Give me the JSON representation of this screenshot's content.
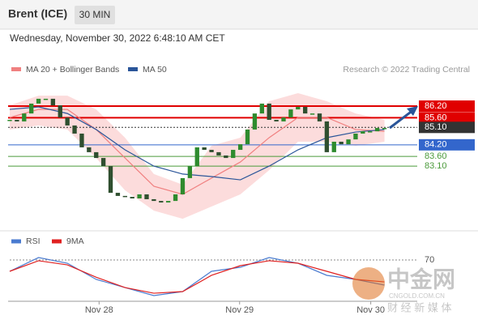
{
  "header": {
    "title": "Brent (ICE)",
    "interval": "30 MIN",
    "datetime": "Wednesday, November 30, 2022 6:48:10 AM CET"
  },
  "credit": "Research © 2022 Trading Central",
  "watermark": {
    "name": "中金网",
    "url": "CNGOLD.COM.CN",
    "tagline": "财 经 新 媒 体"
  },
  "chart_data": [
    {
      "type": "candlestick",
      "up_color": "#2e8b2e",
      "down_color": "#2f4f2f",
      "close": [
        85.49,
        85.41,
        85.82,
        86.33,
        86.58,
        86.58,
        86.24,
        85.61,
        85.2,
        84.78,
        84.07,
        83.82,
        83.52,
        83.1,
        81.72,
        81.56,
        81.51,
        81.43,
        81.64,
        81.39,
        81.3,
        81.22,
        81.3,
        81.64,
        82.48,
        83.1,
        84.07,
        83.94,
        83.82,
        83.65,
        83.52,
        83.94,
        84.23,
        84.99,
        85.82,
        86.33,
        85.49,
        85.41,
        85.61,
        86.03,
        86.16,
        85.82,
        85.82,
        85.41,
        83.82,
        84.36,
        84.23,
        84.48,
        84.78,
        84.9,
        84.9,
        85.07,
        85.07
      ],
      "xlim": [
        0,
        57
      ],
      "ylim": [
        80.2,
        86.9
      ],
      "lines": [
        {
          "name": "MA 20 + Bollinger Bands",
          "color": "#f08080",
          "band_color": "#fbd3d3",
          "x": [
            0,
            4,
            8,
            12,
            16,
            20,
            24,
            28,
            32,
            36,
            40,
            44,
            48,
            52
          ],
          "values": [
            85.61,
            86.03,
            86.03,
            84.99,
            83.52,
            82.06,
            81.64,
            82.48,
            83.31,
            84.57,
            85.61,
            85.61,
            84.99,
            84.9
          ],
          "upper": [
            86.24,
            86.74,
            86.74,
            86.03,
            84.57,
            82.69,
            82.14,
            84.15,
            84.57,
            86.45,
            86.87,
            86.45,
            85.82,
            85.49
          ],
          "lower": [
            84.99,
            85.2,
            84.99,
            83.52,
            81.85,
            80.8,
            80.38,
            81.01,
            81.64,
            82.89,
            84.36,
            84.36,
            84.15,
            84.36
          ]
        },
        {
          "name": "MA 50",
          "color": "#2a5599",
          "x": [
            0,
            4,
            8,
            12,
            16,
            20,
            24,
            28,
            32,
            36,
            40,
            44,
            48,
            52
          ],
          "values": [
            86.03,
            86.16,
            85.82,
            84.99,
            83.94,
            83.1,
            82.69,
            82.56,
            82.39,
            83.1,
            83.94,
            84.57,
            84.86,
            84.99
          ]
        }
      ],
      "levels": [
        {
          "value": 86.2,
          "label": "86.20",
          "color": "#e00000",
          "style": "box",
          "dash": false
        },
        {
          "value": 85.6,
          "label": "85.60",
          "color": "#e00000",
          "style": "box",
          "dash": false
        },
        {
          "value": 85.1,
          "label": "85.10",
          "color": "#333333",
          "style": "box",
          "dash": true
        },
        {
          "value": 84.2,
          "label": "84.20",
          "color": "#3366cc",
          "style": "box",
          "dash": false
        },
        {
          "value": 83.6,
          "label": "83.60",
          "color": "#4a9a3a",
          "style": "text",
          "dash": false
        },
        {
          "value": 83.1,
          "label": "83.10",
          "color": "#4a9a3a",
          "style": "text",
          "dash": false
        }
      ]
    },
    {
      "type": "line",
      "xlim": [
        0,
        57
      ],
      "ylim": [
        10,
        90
      ],
      "yticks": [
        70
      ],
      "xticks": [
        {
          "value": 12.4,
          "label": "Nov 28"
        },
        {
          "value": 31.9,
          "label": "Nov 29"
        },
        {
          "value": 50.1,
          "label": "Nov 30"
        }
      ],
      "series": [
        {
          "name": "RSI",
          "color": "#4a7bd0",
          "x": [
            0,
            4,
            8,
            12,
            16,
            20,
            24,
            28,
            32,
            36,
            40,
            44,
            48,
            52
          ],
          "values": [
            54,
            73.4,
            65.4,
            42.6,
            31.1,
            19.7,
            25.4,
            54,
            59.7,
            73.4,
            65.4,
            48.3,
            42.6,
            34.6
          ]
        },
        {
          "name": "9MA",
          "color": "#e02020",
          "x": [
            0,
            4,
            8,
            12,
            16,
            20,
            24,
            28,
            32,
            36,
            40,
            44,
            48,
            52
          ],
          "values": [
            54,
            68.9,
            63.1,
            45.7,
            31.1,
            23.1,
            25.4,
            48.3,
            62,
            68.9,
            65.4,
            54,
            42.6,
            39.1
          ]
        }
      ]
    }
  ]
}
